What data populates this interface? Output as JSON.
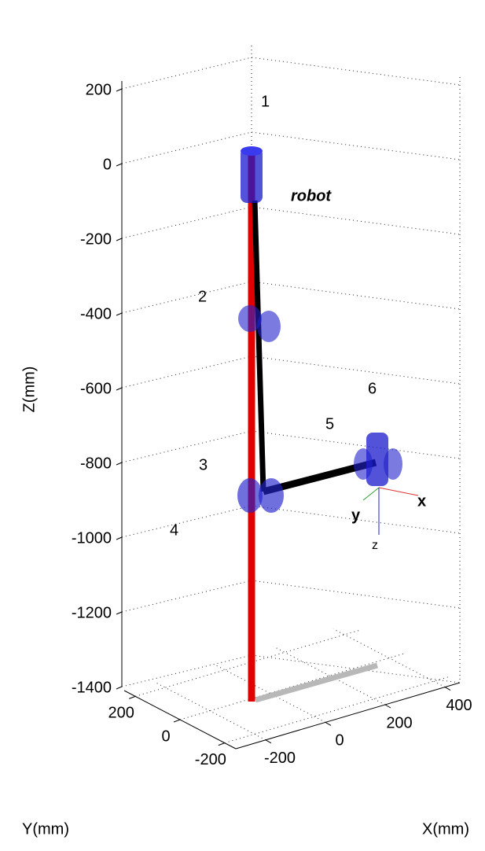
{
  "chart_data": {
    "type": "robot3d",
    "z_label": "Z(mm)",
    "y_label": "Y(mm)",
    "x_label": "X(mm)",
    "zlim": [
      -1400,
      200
    ],
    "zticks": [
      200,
      0,
      -200,
      -400,
      -600,
      -800,
      -1000,
      -1200,
      -1400
    ],
    "ylim": [
      -250,
      250
    ],
    "yticks": [
      200,
      0,
      -200
    ],
    "xlim": [
      -300,
      450
    ],
    "xticks": [
      -200,
      0,
      200,
      400
    ],
    "grid": true,
    "robot_name": "robot",
    "joint_labels": [
      "1",
      "2",
      "3",
      "4",
      "5",
      "6"
    ],
    "frame_labels": [
      "x",
      "y",
      "z"
    ]
  }
}
